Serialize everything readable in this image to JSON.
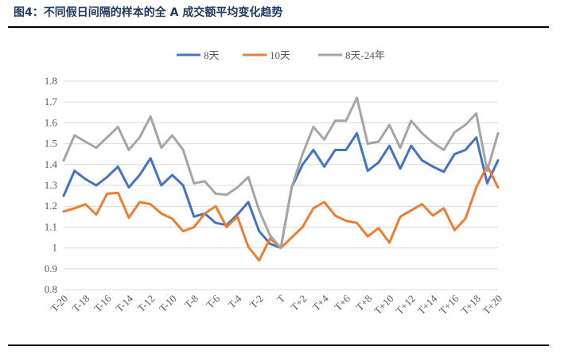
{
  "figure": {
    "title": "图4：不同假日间隔的样本的全 A 成交额平均变化趋势"
  },
  "chart_data": {
    "type": "line",
    "title": "",
    "xlabel": "",
    "ylabel": "",
    "ylim": [
      0.8,
      1.8
    ],
    "yticks": [
      "0.8",
      "0.9",
      "1",
      "1.1",
      "1.2",
      "1.3",
      "1.4",
      "1.5",
      "1.6",
      "1.7",
      "1.8"
    ],
    "ytick_values": [
      0.8,
      0.9,
      1.0,
      1.1,
      1.2,
      1.3,
      1.4,
      1.5,
      1.6,
      1.7,
      1.8
    ],
    "grid": true,
    "legend_position": "top-center",
    "categories": [
      "T-20",
      "T-19",
      "T-18",
      "T-17",
      "T-16",
      "T-15",
      "T-14",
      "T-13",
      "T-12",
      "T-11",
      "T-10",
      "T-9",
      "T-8",
      "T-7",
      "T-6",
      "T-5",
      "T-4",
      "T-3",
      "T-2",
      "T-1",
      "T",
      "T+1",
      "T+2",
      "T+3",
      "T+4",
      "T+5",
      "T+6",
      "T+7",
      "T+8",
      "T+9",
      "T+10",
      "T+11",
      "T+12",
      "T+13",
      "T+14",
      "T+15",
      "T+16",
      "T+17",
      "T+18",
      "T+19",
      "T+20"
    ],
    "tick_labels": [
      "T-20",
      "T-18",
      "T-16",
      "T-14",
      "T-12",
      "T-10",
      "T-8",
      "T-6",
      "T-4",
      "T-2",
      "T",
      "T+2",
      "T+4",
      "T+6",
      "T+8",
      "T+10",
      "T+12",
      "T+14",
      "T+16",
      "T+18",
      "T+20"
    ],
    "series": [
      {
        "name": "8天",
        "color": "#4472c4",
        "values": [
          1.25,
          1.37,
          1.33,
          1.3,
          1.34,
          1.39,
          1.29,
          1.35,
          1.43,
          1.3,
          1.35,
          1.3,
          1.15,
          1.165,
          1.12,
          1.11,
          1.16,
          1.22,
          1.08,
          1.02,
          1.0,
          1.29,
          1.4,
          1.47,
          1.39,
          1.47,
          1.47,
          1.55,
          1.37,
          1.41,
          1.49,
          1.38,
          1.49,
          1.42,
          1.39,
          1.365,
          1.45,
          1.47,
          1.53,
          1.31,
          1.42
        ]
      },
      {
        "name": "10天",
        "color": "#ed7d31",
        "values": [
          1.175,
          1.19,
          1.21,
          1.16,
          1.26,
          1.265,
          1.145,
          1.22,
          1.21,
          1.165,
          1.14,
          1.08,
          1.1,
          1.165,
          1.2,
          1.1,
          1.15,
          1.005,
          0.94,
          1.045,
          1.0,
          1.05,
          1.1,
          1.19,
          1.22,
          1.155,
          1.13,
          1.12,
          1.055,
          1.095,
          1.025,
          1.15,
          1.18,
          1.21,
          1.155,
          1.19,
          1.085,
          1.14,
          1.29,
          1.395,
          1.29
        ]
      },
      {
        "name": "8天-24年",
        "color": "#a5a5a5",
        "values": [
          1.42,
          1.54,
          1.51,
          1.48,
          1.53,
          1.58,
          1.47,
          1.53,
          1.63,
          1.48,
          1.54,
          1.47,
          1.31,
          1.32,
          1.26,
          1.255,
          1.29,
          1.34,
          1.18,
          1.06,
          1.0,
          1.29,
          1.45,
          1.58,
          1.52,
          1.61,
          1.61,
          1.72,
          1.5,
          1.51,
          1.59,
          1.48,
          1.61,
          1.55,
          1.505,
          1.47,
          1.555,
          1.59,
          1.645,
          1.37,
          1.55
        ]
      }
    ]
  }
}
